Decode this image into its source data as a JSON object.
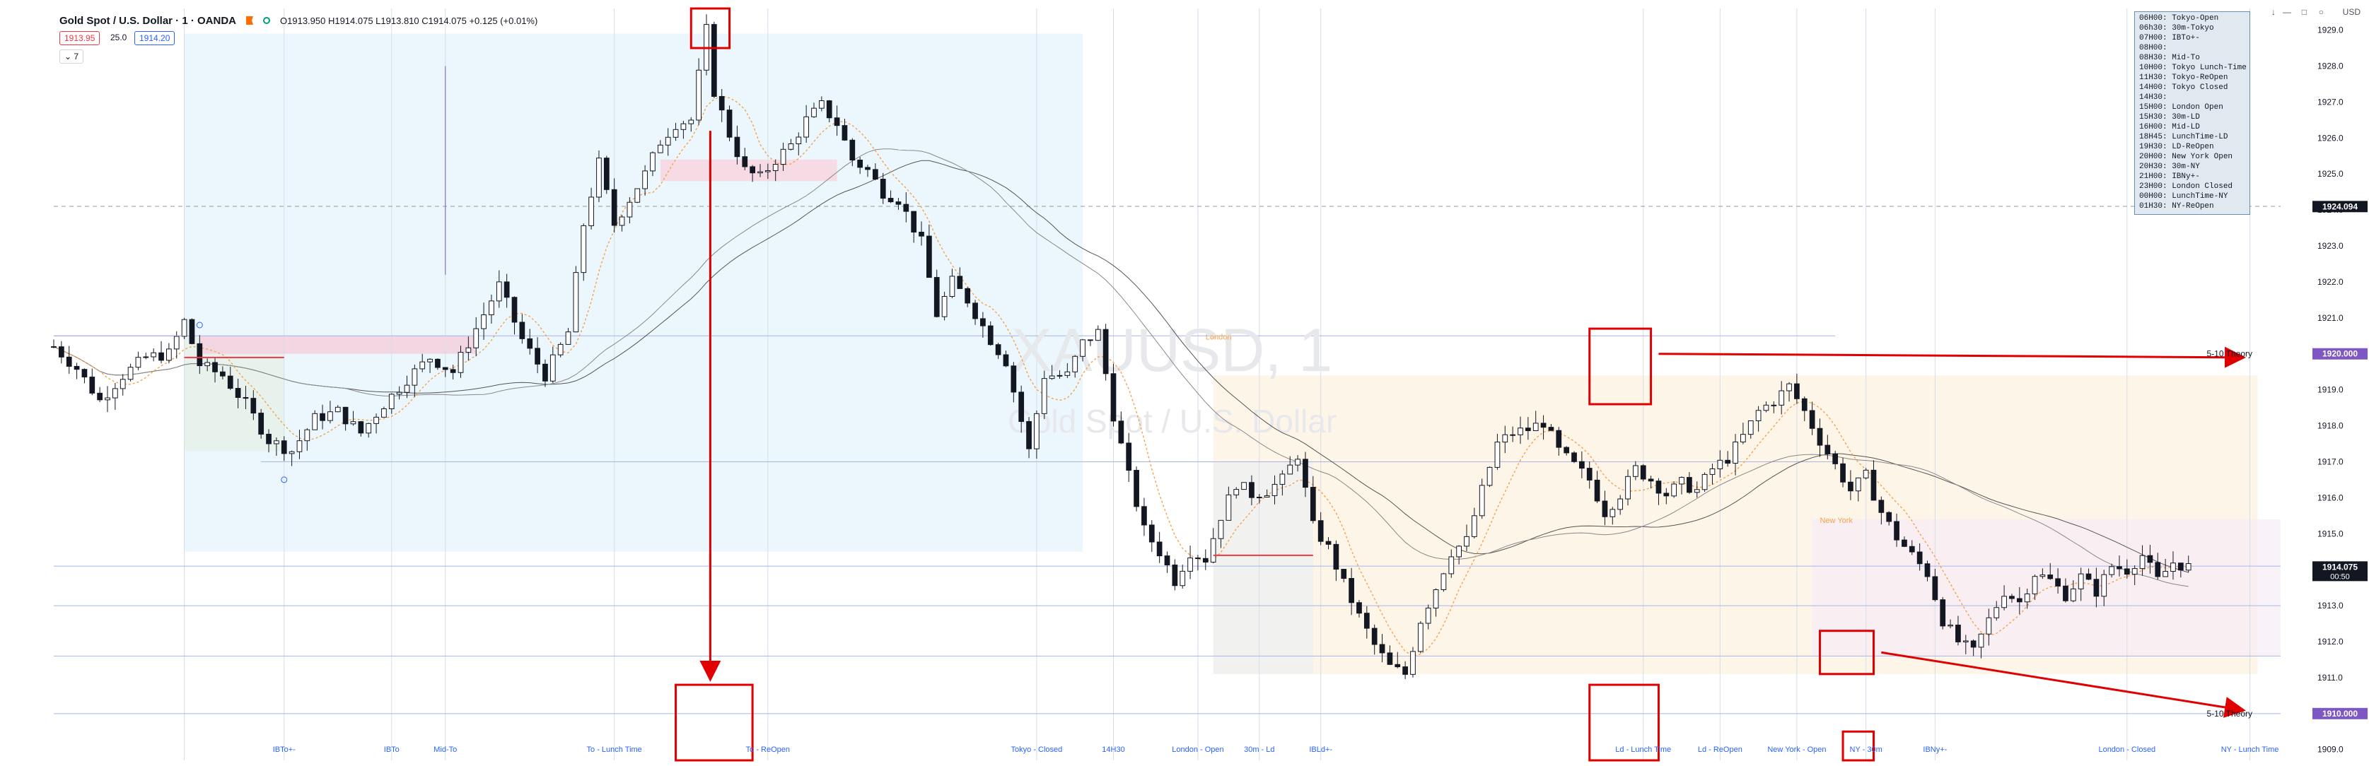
{
  "header": {
    "symbol": "Gold Spot / U.S. Dollar · 1 · OANDA",
    "ohlc": "O1913.950 H1914.075 L1913.810 C1914.075 +0.125 (+0.01%)",
    "bid": "1913.95",
    "spread": "25.0",
    "ask": "1914.20",
    "collapse": "7"
  },
  "currency": "USD",
  "session_table": [
    "06H00:  Tokyo-Open",
    "06h30:  30m-Tokyo",
    "07H00:  IBTo+-",
    "08H00:",
    "08H30:  Mid-To",
    "10H00:  Tokyo Lunch-Time",
    "11H30:  Tokyo-ReOpen",
    "14H00:  Tokyo Closed",
    "14H30:",
    "15H00:  London Open",
    "15H30:  30m-LD",
    "16H00:  Mid-LD",
    "18H45:  LunchTime-LD",
    "19H30:  LD-ReOpen",
    "20H00:  New York Open",
    "20H30:  30m-NY",
    "21H00:  IBNy+-",
    "23H00:  London Closed",
    "00H00:  LunchTime-NY",
    "01H30:  NY-ReOpen"
  ],
  "watermark": {
    "line1": "XAUUSD, 1",
    "line2": "Gold Spot / U.S. Dollar"
  },
  "chart_data": {
    "type": "candlestick",
    "instrument": "XAUUSD",
    "interval": "1",
    "ylim": [
      1908.7,
      1929.6
    ],
    "y_ticks": [
      1909.0,
      1910.0,
      1911.0,
      1912.0,
      1913.0,
      1914.0,
      1915.0,
      1916.0,
      1917.0,
      1918.0,
      1919.0,
      1920.0,
      1921.0,
      1922.0,
      1923.0,
      1924.0,
      1925.0,
      1926.0,
      1927.0,
      1928.0,
      1929.0
    ],
    "price_path": [
      [
        0,
        1920.2
      ],
      [
        3,
        1919.6
      ],
      [
        6,
        1918.7
      ],
      [
        9,
        1919.4
      ],
      [
        12,
        1919.9
      ],
      [
        15,
        1920.0
      ],
      [
        17,
        1920.9
      ],
      [
        19,
        1919.7
      ],
      [
        22,
        1919.4
      ],
      [
        25,
        1918.6
      ],
      [
        28,
        1917.6
      ],
      [
        31,
        1917.3
      ],
      [
        34,
        1918.2
      ],
      [
        37,
        1918.4
      ],
      [
        40,
        1917.8
      ],
      [
        43,
        1918.6
      ],
      [
        46,
        1919.3
      ],
      [
        49,
        1919.9
      ],
      [
        52,
        1919.5
      ],
      [
        55,
        1920.7
      ],
      [
        58,
        1921.9
      ],
      [
        61,
        1920.4
      ],
      [
        64,
        1919.4
      ],
      [
        67,
        1920.6
      ],
      [
        69,
        1923.6
      ],
      [
        71,
        1925.3
      ],
      [
        73,
        1923.6
      ],
      [
        75,
        1924.3
      ],
      [
        77,
        1925.0
      ],
      [
        79,
        1925.9
      ],
      [
        81,
        1926.4
      ],
      [
        83,
        1926.5
      ],
      [
        85,
        1929.0
      ],
      [
        86,
        1927.3
      ],
      [
        88,
        1926.1
      ],
      [
        90,
        1925.1
      ],
      [
        92,
        1924.9
      ],
      [
        94,
        1925.4
      ],
      [
        96,
        1925.8
      ],
      [
        98,
        1926.5
      ],
      [
        100,
        1926.9
      ],
      [
        102,
        1926.4
      ],
      [
        104,
        1925.4
      ],
      [
        106,
        1925.1
      ],
      [
        108,
        1924.5
      ],
      [
        110,
        1924.3
      ],
      [
        113,
        1923.1
      ],
      [
        115,
        1921.1
      ],
      [
        117,
        1922.0
      ],
      [
        119,
        1921.5
      ],
      [
        122,
        1920.4
      ],
      [
        124,
        1919.8
      ],
      [
        127,
        1917.3
      ],
      [
        129,
        1919.4
      ],
      [
        132,
        1919.4
      ],
      [
        134,
        1920.3
      ],
      [
        136,
        1920.6
      ],
      [
        138,
        1918.3
      ],
      [
        140,
        1916.6
      ],
      [
        142,
        1915.1
      ],
      [
        144,
        1914.5
      ],
      [
        146,
        1913.7
      ],
      [
        148,
        1914.5
      ],
      [
        150,
        1914.3
      ],
      [
        152,
        1915.5
      ],
      [
        154,
        1916.4
      ],
      [
        156,
        1916.1
      ],
      [
        158,
        1916.2
      ],
      [
        160,
        1916.5
      ],
      [
        162,
        1917.2
      ],
      [
        164,
        1915.2
      ],
      [
        166,
        1914.6
      ],
      [
        168,
        1913.6
      ],
      [
        170,
        1912.7
      ],
      [
        172,
        1911.9
      ],
      [
        174,
        1911.3
      ],
      [
        176,
        1911.1
      ],
      [
        178,
        1912.6
      ],
      [
        180,
        1913.5
      ],
      [
        182,
        1914.5
      ],
      [
        184,
        1914.8
      ],
      [
        186,
        1916.2
      ],
      [
        188,
        1917.5
      ],
      [
        190,
        1917.8
      ],
      [
        192,
        1917.9
      ],
      [
        194,
        1918.1
      ],
      [
        196,
        1917.3
      ],
      [
        198,
        1916.9
      ],
      [
        200,
        1916.5
      ],
      [
        202,
        1915.6
      ],
      [
        204,
        1916.1
      ],
      [
        206,
        1916.8
      ],
      [
        208,
        1916.5
      ],
      [
        210,
        1916.1
      ],
      [
        212,
        1916.4
      ],
      [
        214,
        1916.2
      ],
      [
        216,
        1916.8
      ],
      [
        218,
        1917.1
      ],
      [
        220,
        1917.7
      ],
      [
        222,
        1918.4
      ],
      [
        224,
        1918.7
      ],
      [
        226,
        1919.1
      ],
      [
        228,
        1918.4
      ],
      [
        230,
        1917.6
      ],
      [
        232,
        1916.9
      ],
      [
        234,
        1916.2
      ],
      [
        236,
        1916.6
      ],
      [
        238,
        1915.6
      ],
      [
        240,
        1914.9
      ],
      [
        242,
        1914.4
      ],
      [
        244,
        1913.9
      ],
      [
        246,
        1912.6
      ],
      [
        248,
        1912.0
      ],
      [
        250,
        1911.7
      ],
      [
        252,
        1912.6
      ],
      [
        254,
        1913.4
      ],
      [
        256,
        1913.1
      ],
      [
        258,
        1913.9
      ],
      [
        260,
        1913.7
      ],
      [
        262,
        1913.3
      ],
      [
        264,
        1913.8
      ],
      [
        266,
        1913.4
      ],
      [
        268,
        1914.1
      ],
      [
        270,
        1914.0
      ],
      [
        272,
        1914.4
      ],
      [
        274,
        1913.7
      ],
      [
        276,
        1914.2
      ],
      [
        278,
        1914.075
      ]
    ],
    "last_price": 1914.075,
    "last_price_label": "1914.075",
    "countdown_label": "00:50",
    "marked_level_label": "1924.094",
    "markers": [
      {
        "label": "5-10 Theory",
        "value": 1920.0,
        "value_label": "1920.000"
      },
      {
        "label": "5-10 Theory",
        "value": 1910.0,
        "value_label": "1910.000"
      }
    ],
    "session_labels": [
      {
        "text": "IBTo+-",
        "bar": 30
      },
      {
        "text": "IBTo",
        "bar": 44
      },
      {
        "text": "Mid-To",
        "bar": 51
      },
      {
        "text": "To - Lunch Time",
        "bar": 73
      },
      {
        "text": "To - ReOpen",
        "bar": 93
      },
      {
        "text": "Tokyo - Closed",
        "bar": 128
      },
      {
        "text": "14H30",
        "bar": 138
      },
      {
        "text": "London - Open",
        "bar": 149
      },
      {
        "text": "30m - Ld",
        "bar": 157
      },
      {
        "text": "IBLd+-",
        "bar": 165
      },
      {
        "text": "Ld - Lunch Time",
        "bar": 207
      },
      {
        "text": "Ld - ReOpen",
        "bar": 217
      },
      {
        "text": "New York - Open",
        "bar": 227
      },
      {
        "text": "NY - 30m",
        "bar": 236
      },
      {
        "text": "IBNy+-",
        "bar": 245
      },
      {
        "text": "London - Closed",
        "bar": 270
      },
      {
        "text": "NY - Lunch Time",
        "bar": 286
      }
    ],
    "in_chart_labels": [
      {
        "text": "London",
        "value": 1920.4,
        "bar": 150
      },
      {
        "text": "New York",
        "value": 1915.3,
        "bar": 230
      }
    ]
  }
}
